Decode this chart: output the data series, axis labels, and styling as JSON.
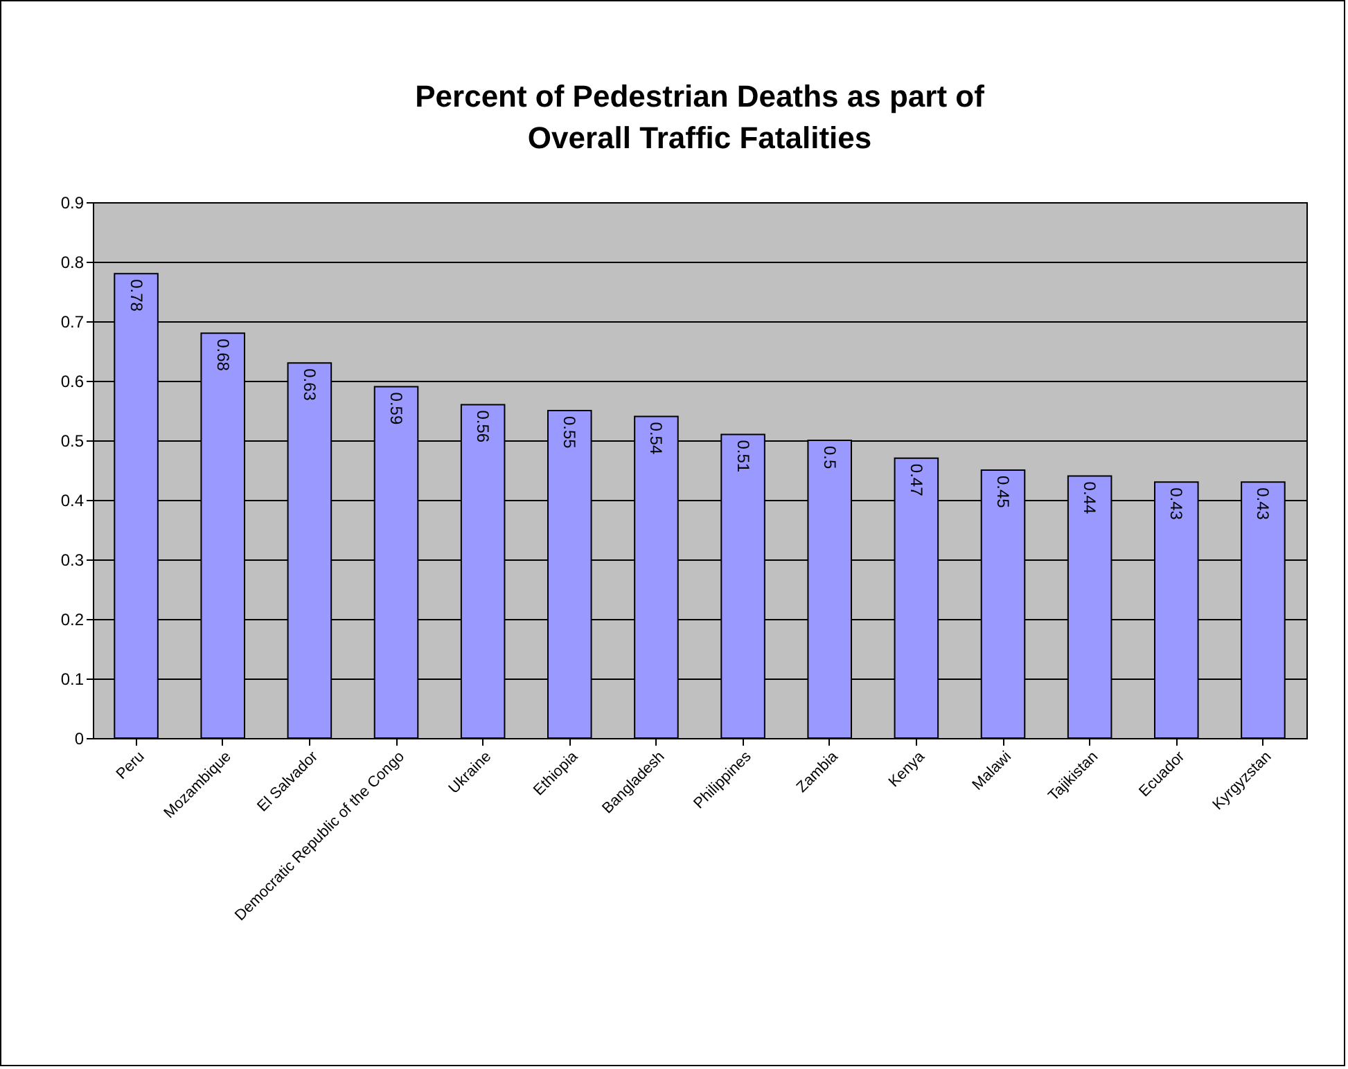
{
  "chart_data": {
    "type": "bar",
    "title": "Percent of Pedestrian Deaths as part of Overall Traffic Fatalities",
    "categories": [
      "Peru",
      "Mozambique",
      "El Salvador",
      "Democratic Republic of the Congo",
      "Ukraine",
      "Ethiopia",
      "Bangladesh",
      "Philippines",
      "Zambia",
      "Kenya",
      "Malawi",
      "Tajikistan",
      "Ecuador",
      "Kyrgyzstan"
    ],
    "values": [
      0.78,
      0.68,
      0.63,
      0.59,
      0.56,
      0.55,
      0.54,
      0.51,
      0.5,
      0.47,
      0.45,
      0.44,
      0.43,
      0.43
    ],
    "color": "#9999ff",
    "ylim": [
      0,
      0.9
    ],
    "yticks": [
      0,
      0.1,
      0.2,
      0.3,
      0.4,
      0.5,
      0.6,
      0.7,
      0.8,
      0.9
    ],
    "grid": true,
    "data_labels": true
  }
}
